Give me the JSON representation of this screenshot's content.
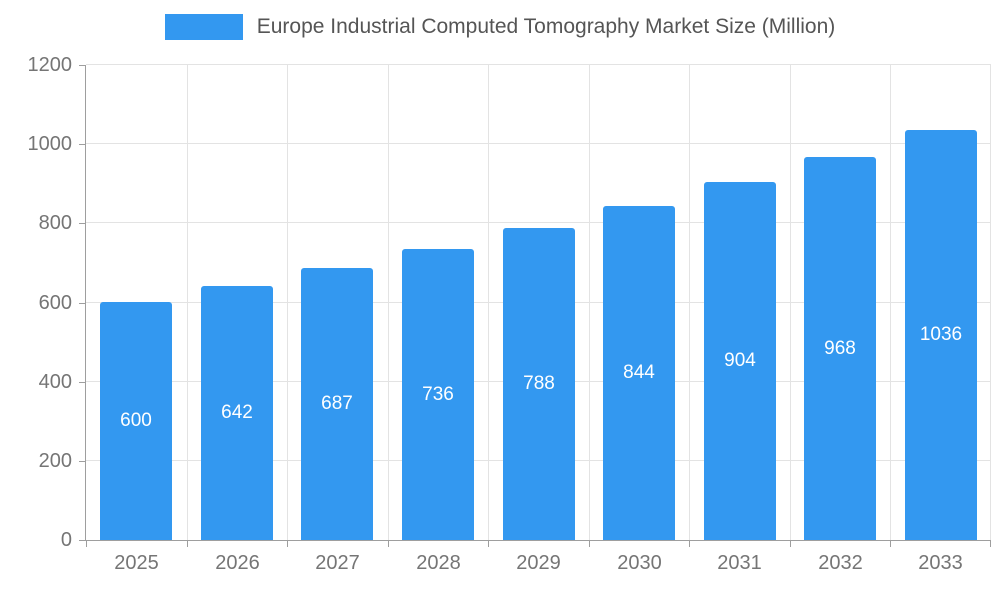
{
  "chart_data": {
    "type": "bar",
    "title": "Europe Industrial Computed Tomography Market Size (Million)",
    "categories": [
      "2025",
      "2026",
      "2027",
      "2028",
      "2029",
      "2030",
      "2031",
      "2032",
      "2033"
    ],
    "values": [
      600,
      642,
      687,
      736,
      788,
      844,
      904,
      968,
      1036
    ],
    "xlabel": "",
    "ylabel": "",
    "ylim": [
      0,
      1200
    ],
    "ytick_step": 200,
    "ytick_labels": [
      "0",
      "200",
      "400",
      "600",
      "800",
      "1000",
      "1200"
    ],
    "grid": true,
    "legend_position": "top",
    "value_labels": "inside-center",
    "bar_color": "#3398f0",
    "label_color": "#ffffff",
    "axis_text_color": "#757575",
    "title_color": "#555555"
  }
}
